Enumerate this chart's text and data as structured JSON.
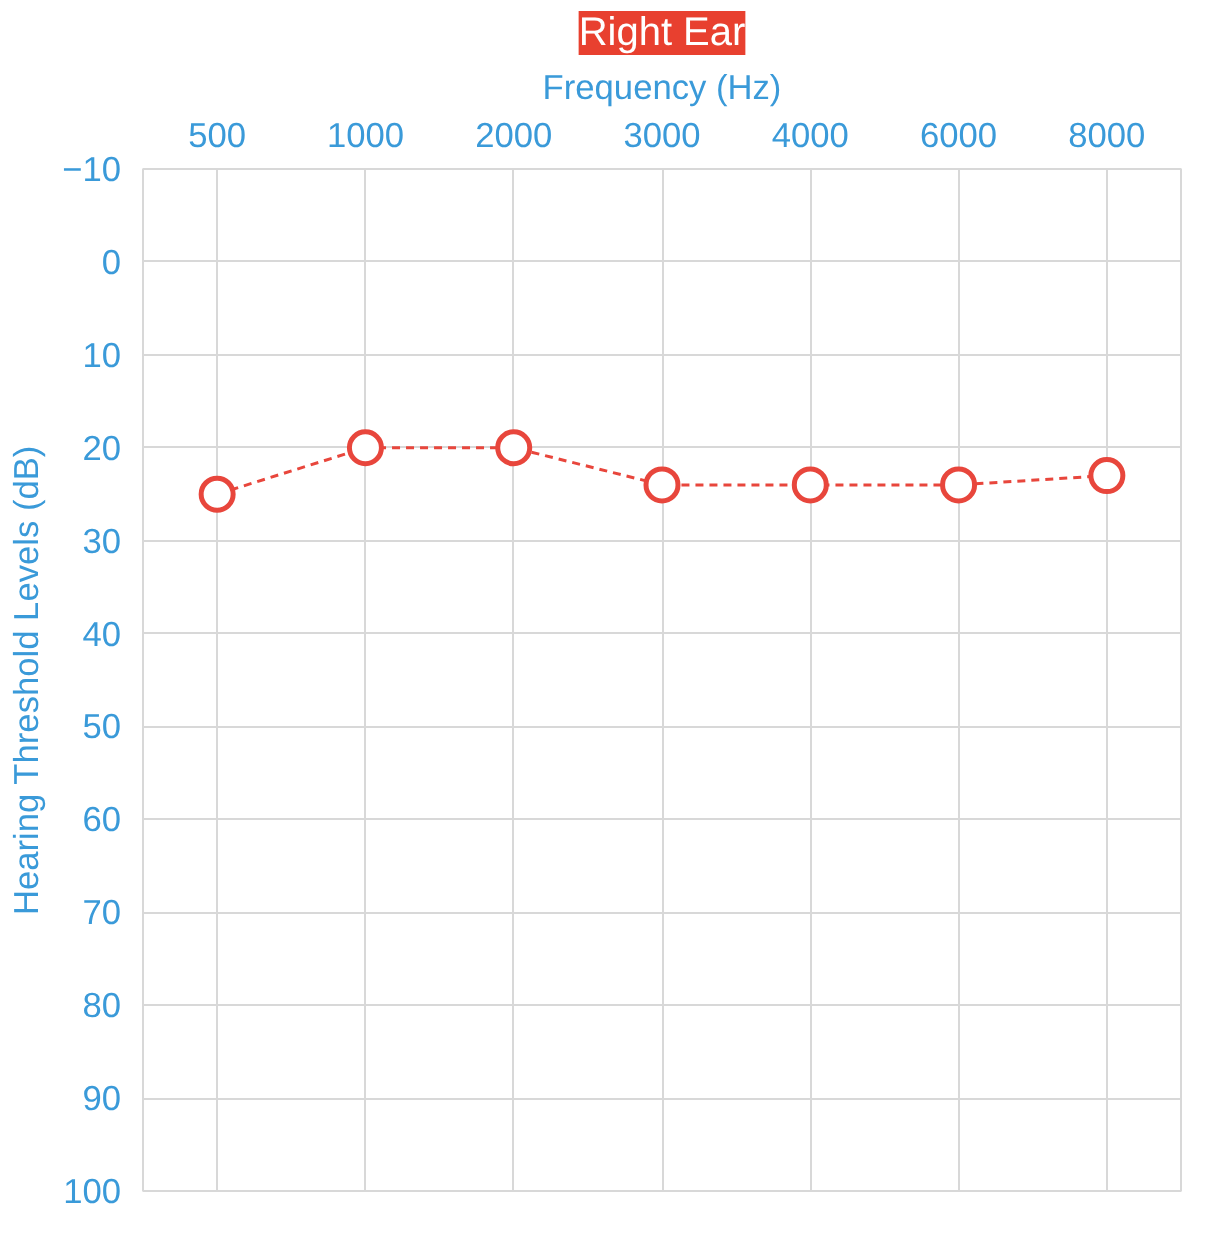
{
  "chart_data": {
    "type": "line",
    "title": "Right Ear",
    "xlabel": "Frequency (Hz)",
    "ylabel": "Hearing Threshold Levels (dB)",
    "categories": [
      "500",
      "1000",
      "2000",
      "3000",
      "4000",
      "6000",
      "8000"
    ],
    "series": [
      {
        "color": "#e8463c",
        "values": [
          25,
          20,
          20,
          24,
          24,
          24,
          23
        ]
      }
    ],
    "ylim": [
      100,
      -10
    ],
    "yticks": [
      -10,
      0,
      10,
      20,
      30,
      40,
      50,
      60,
      70,
      80,
      90,
      100
    ],
    "grid": true,
    "marker": "circle",
    "line_style": "dashed"
  }
}
